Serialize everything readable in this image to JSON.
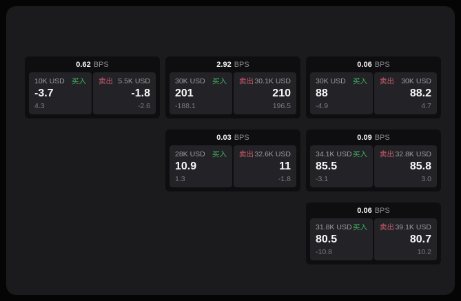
{
  "labels": {
    "bps_unit": "BPS",
    "buy": "买入",
    "sell": "卖出"
  },
  "colors": {
    "page_bg": "#050505",
    "panel_bg": "#1b1b1d",
    "card_bg": "#0e0e10",
    "tile_bg": "#232327",
    "buy_text": "#3fb060",
    "sell_text": "#c75a6b",
    "value_text": "#f7f7f8",
    "label_text": "#9d9da2",
    "dim_text": "#7b7b81",
    "muted_text": "#8b8b90"
  },
  "cards": [
    {
      "bps": "0.62",
      "row": 1,
      "col": 1,
      "buy": {
        "amount": "10K USD",
        "price": "-3.7",
        "change": "4.3"
      },
      "sell": {
        "amount": "5.5K USD",
        "price": "-1.8",
        "change": "-2.6"
      }
    },
    {
      "bps": "2.92",
      "row": 1,
      "col": 2,
      "buy": {
        "amount": "30K USD",
        "price": "201",
        "change": "-188.1"
      },
      "sell": {
        "amount": "30.1K USD",
        "price": "210",
        "change": "196.5"
      }
    },
    {
      "bps": "0.06",
      "row": 1,
      "col": 3,
      "buy": {
        "amount": "30K USD",
        "price": "88",
        "change": "-4.9"
      },
      "sell": {
        "amount": "30K USD",
        "price": "88.2",
        "change": "4.7"
      }
    },
    {
      "bps": "0.03",
      "row": 2,
      "col": 2,
      "buy": {
        "amount": "28K USD",
        "price": "10.9",
        "change": "1.3"
      },
      "sell": {
        "amount": "32.6K USD",
        "price": "11",
        "change": "-1.8"
      }
    },
    {
      "bps": "0.09",
      "row": 2,
      "col": 3,
      "buy": {
        "amount": "34.1K USD",
        "price": "85.5",
        "change": "-3.1"
      },
      "sell": {
        "amount": "32.8K USD",
        "price": "85.8",
        "change": "3.0"
      }
    },
    {
      "bps": "0.06",
      "row": 3,
      "col": 3,
      "buy": {
        "amount": "31.8K USD",
        "price": "80.5",
        "change": "-10.8"
      },
      "sell": {
        "amount": "39.1K USD",
        "price": "80.7",
        "change": "10.2"
      }
    }
  ]
}
